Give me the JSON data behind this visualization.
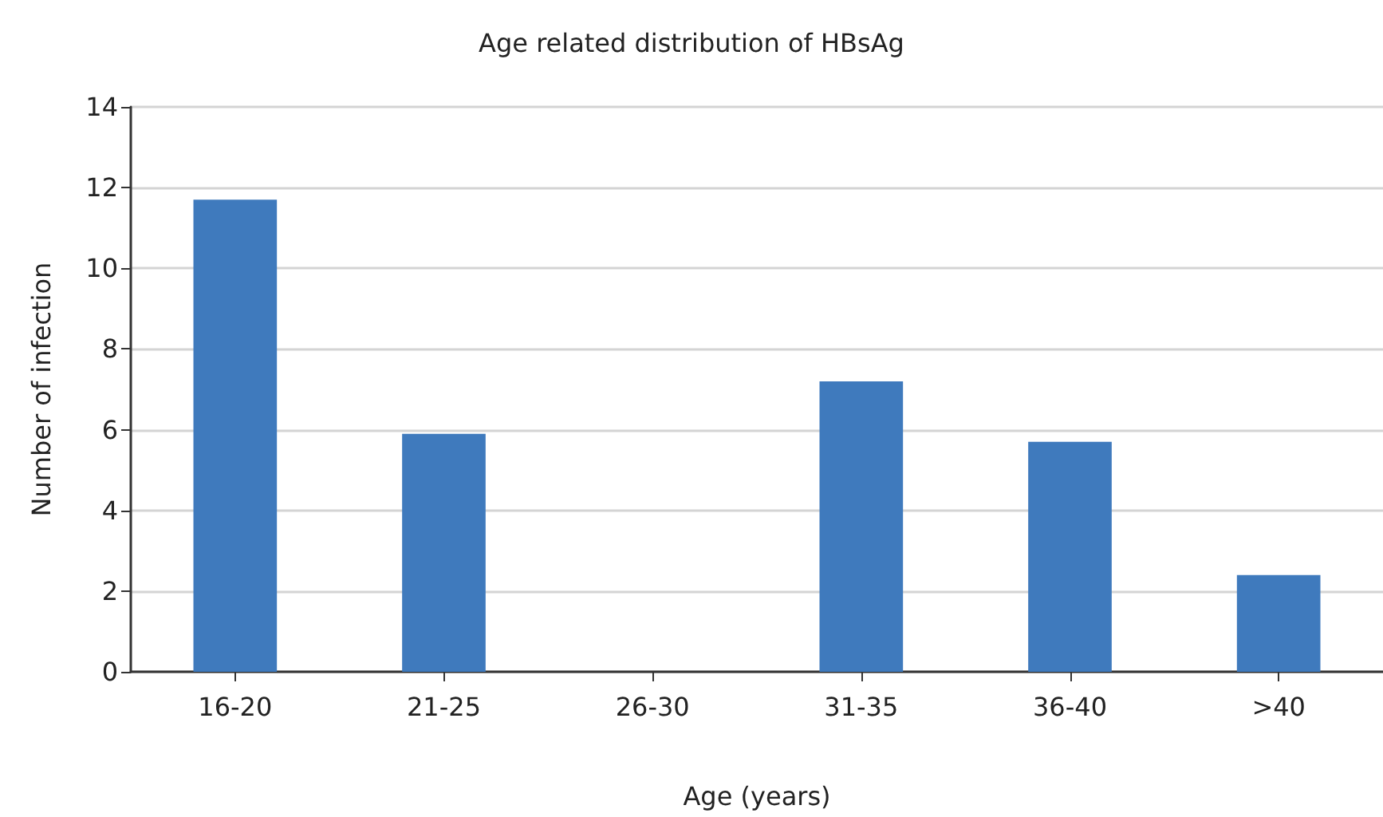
{
  "chart_data": {
    "type": "bar",
    "title": "Age related distribution of HBsAg",
    "xlabel": "Age (years)",
    "ylabel": "Number of infection",
    "categories": [
      "16-20",
      "21-25",
      "26-30",
      "31-35",
      "36-40",
      ">40"
    ],
    "values": [
      11.7,
      5.9,
      0,
      7.2,
      5.7,
      2.4
    ],
    "color": "#3f7abd",
    "ylim": [
      0,
      14
    ],
    "yticks": [
      0,
      2,
      4,
      6,
      8,
      10,
      12,
      14
    ],
    "grid": "y"
  }
}
